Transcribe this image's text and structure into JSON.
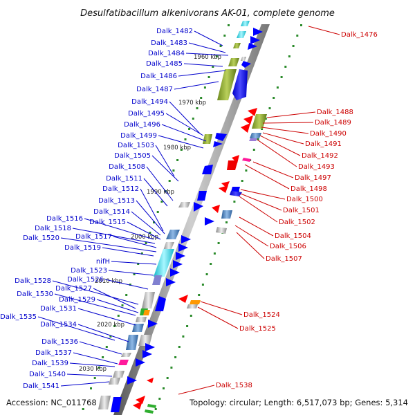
{
  "title": "Desulfatibacillum alkenivorans AK-01, complete genome",
  "footer": {
    "accession": "Accession: NC_011768",
    "topology": "Topology: circular; Length: 6,517,073 bp; Genes: 5,314"
  },
  "scale_marks": [
    "1960 kbp",
    "1970 kbp",
    "1980 kbp",
    "1990 kbp",
    "2000 kbp",
    "2010 kbp",
    "2020 kbp",
    "2030 kbp"
  ],
  "left_genes": [
    "Dalk_1482",
    "Dalk_1483",
    "Dalk_1484",
    "Dalk_1485",
    "Dalk_1486",
    "Dalk_1487",
    "Dalk_1494",
    "Dalk_1495",
    "Dalk_1496",
    "Dalk_1499",
    "Dalk_1503",
    "Dalk_1505",
    "Dalk_1508",
    "Dalk_1511",
    "Dalk_1512",
    "Dalk_1513",
    "Dalk_1514",
    "Dalk_1515",
    "Dalk_1516",
    "Dalk_1518",
    "Dalk_1517",
    "Dalk_1520",
    "Dalk_1519",
    "nifH",
    "Dalk_1523",
    "Dalk_1526",
    "Dalk_1528",
    "Dalk_1527",
    "Dalk_1530",
    "Dalk_1529",
    "Dalk_1531",
    "Dalk_1535",
    "Dalk_1534",
    "Dalk_1536",
    "Dalk_1537",
    "Dalk_1539",
    "Dalk_1540",
    "Dalk_1541"
  ],
  "right_genes": [
    "Dalk_1476",
    "Dalk_1488",
    "Dalk_1489",
    "Dalk_1490",
    "Dalk_1491",
    "Dalk_1492",
    "Dalk_1493",
    "Dalk_1497",
    "Dalk_1498",
    "Dalk_1500",
    "Dalk_1501",
    "Dalk_1502",
    "Dalk_1504",
    "Dalk_1506",
    "Dalk_1507",
    "Dalk_1524",
    "Dalk_1525",
    "Dalk_1538"
  ],
  "colors": {
    "left_label": "#0000cc",
    "right_label": "#cc0000",
    "forward_gene": "#0000ff",
    "reverse_gene": "#ff0000",
    "rna_ticks": "#2a8a2a",
    "backbone": "#8c8c8c"
  }
}
